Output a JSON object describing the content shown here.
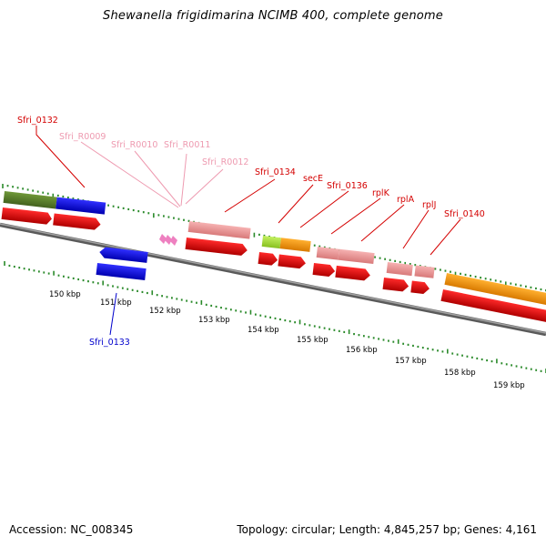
{
  "title": "Shewanella frigidimarina NCIMB 400, complete genome",
  "accession": "Accession: NC_008345",
  "summary": "Topology: circular; Length: 4,845,257 bp; Genes: 4,161",
  "colors": {
    "backbone": "#7a7a7a",
    "gc_ticks": "#2a8a2a",
    "cds_red": "#e80000",
    "rna_pink": "#ee9a9a",
    "gene_olive": "#5b7f2c",
    "gene_blue": "#1a1ae0",
    "gene_orange": "#f59a10",
    "gene_lime": "#a8e040",
    "label_red": "#d40000",
    "label_pink": "#ee9ab0",
    "label_blue": "#0000cc"
  },
  "ruler": [
    "150 kbp",
    "151 kbp",
    "152 kbp",
    "153 kbp",
    "154 kbp",
    "155 kbp",
    "156 kbp",
    "157 kbp",
    "158 kbp",
    "159 kbp"
  ],
  "gene_labels": [
    {
      "id": "sfri0132",
      "text": "Sfri_0132",
      "color": "red"
    },
    {
      "id": "r0009",
      "text": "Sfri_R0009",
      "color": "pink"
    },
    {
      "id": "r0010",
      "text": "Sfri_R0010",
      "color": "pink"
    },
    {
      "id": "r0011",
      "text": "Sfri_R0011",
      "color": "pink"
    },
    {
      "id": "r0012",
      "text": "Sfri_R0012",
      "color": "pink"
    },
    {
      "id": "sfri0134",
      "text": "Sfri_0134",
      "color": "red"
    },
    {
      "id": "sece",
      "text": "secE",
      "color": "red"
    },
    {
      "id": "sfri0136",
      "text": "Sfri_0136",
      "color": "red"
    },
    {
      "id": "rplk",
      "text": "rplK",
      "color": "red"
    },
    {
      "id": "rpla",
      "text": "rplA",
      "color": "red"
    },
    {
      "id": "rplj",
      "text": "rplJ",
      "color": "red"
    },
    {
      "id": "sfri0140",
      "text": "Sfri_0140",
      "color": "red"
    },
    {
      "id": "sfri0133",
      "text": "Sfri_0133",
      "color": "blue"
    }
  ]
}
